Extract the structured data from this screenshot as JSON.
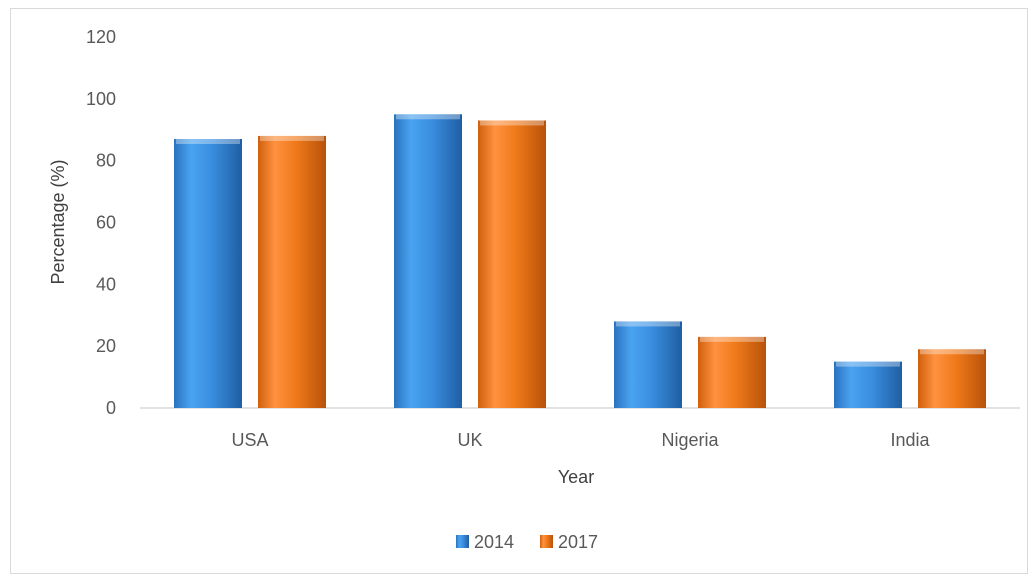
{
  "chart_data": {
    "type": "bar",
    "title": "",
    "xlabel": "Year",
    "ylabel": "Percentage (%)",
    "categories": [
      "USA",
      "UK",
      "Nigeria",
      "India"
    ],
    "series": [
      {
        "name": "2014",
        "color": "#3a8ee0",
        "values": [
          87,
          95,
          28,
          15
        ]
      },
      {
        "name": "2017",
        "color": "#f07a1a",
        "values": [
          88,
          93,
          23,
          19
        ]
      }
    ],
    "ylim": [
      0,
      120
    ],
    "yticks": [
      "0",
      "20",
      "40",
      "60",
      "80",
      "100",
      "120"
    ],
    "grid": false,
    "legend_position": "bottom-center"
  }
}
